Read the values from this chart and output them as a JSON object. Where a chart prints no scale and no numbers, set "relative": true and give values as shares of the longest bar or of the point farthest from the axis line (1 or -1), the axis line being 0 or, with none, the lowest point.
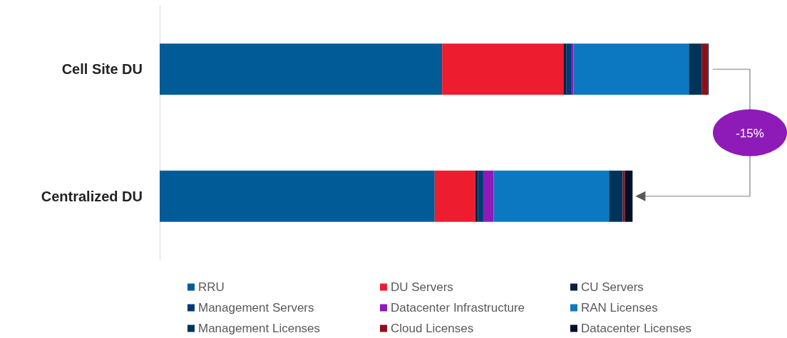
{
  "chart_data": {
    "type": "bar",
    "orientation": "horizontal",
    "stacked": true,
    "relative": true,
    "legend": "bottom",
    "categories": [
      "Cell Site DU",
      "Centralized DU"
    ],
    "series": [
      {
        "name": "RRU",
        "color": "#005b96",
        "values": [
          0.5145,
          0.501
        ]
      },
      {
        "name": "DU Servers",
        "color": "#ed1c2e",
        "values": [
          0.221,
          0.074
        ]
      },
      {
        "name": "CU Servers",
        "color": "#0a2240",
        "values": [
          0.005,
          0.005
        ]
      },
      {
        "name": "Management Servers",
        "color": "#003a75",
        "values": [
          0.01,
          0.0095
        ]
      },
      {
        "name": "Datacenter Infrastructure",
        "color": "#8e1bb8",
        "values": [
          0.0035,
          0.019
        ]
      },
      {
        "name": "RAN Licenses",
        "color": "#0b78c1",
        "values": [
          0.21,
          0.21
        ]
      },
      {
        "name": "Management Licenses",
        "color": "#023459",
        "values": [
          0.024,
          0.025
        ]
      },
      {
        "name": "Cloud Licenses",
        "color": "#8e0f18",
        "values": [
          0.01,
          0.004
        ]
      },
      {
        "name": "Datacenter Licenses",
        "color": "#000f2a",
        "values": [
          0.002,
          0.014
        ]
      }
    ],
    "annotations": [
      "-15%"
    ]
  }
}
